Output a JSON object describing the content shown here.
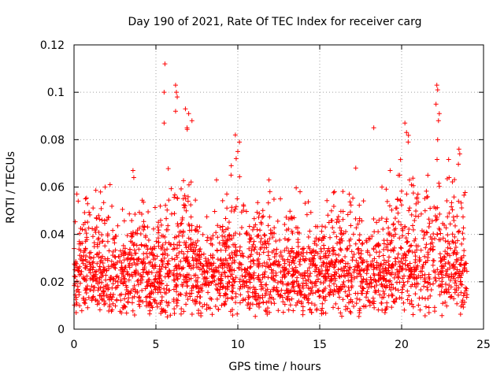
{
  "chart_data": {
    "type": "scatter",
    "title": "Day 190 of 2021, Rate Of TEC Index for receiver carg",
    "xlabel": "GPS time / hours",
    "ylabel": "ROTI / TECUs",
    "xlim": [
      0,
      25
    ],
    "ylim": [
      0,
      0.12
    ],
    "x_ticks": [
      0,
      5,
      10,
      15,
      20,
      25
    ],
    "x_tick_labels": [
      "0",
      "5",
      "10",
      "15",
      "20",
      "25"
    ],
    "y_ticks": [
      0,
      0.02,
      0.04,
      0.06,
      0.08,
      0.1,
      0.12
    ],
    "y_tick_labels": [
      "0",
      "0.02",
      "0.04",
      "0.06",
      "0.08",
      "0.1",
      "0.12"
    ],
    "grid": true,
    "marker": "plus",
    "color": "#ff0000",
    "x_data_range": [
      0,
      24
    ],
    "baseline_band": [
      0.005,
      0.03
    ],
    "series": [
      {
        "name": "ROTI",
        "points": [
          [
            5.55,
            0.112
          ],
          [
            5.5,
            0.1
          ],
          [
            6.2,
            0.103
          ],
          [
            6.25,
            0.1
          ],
          [
            6.3,
            0.098
          ],
          [
            5.5,
            0.087
          ],
          [
            6.2,
            0.092
          ],
          [
            6.8,
            0.093
          ],
          [
            7.0,
            0.091
          ],
          [
            7.2,
            0.088
          ],
          [
            6.9,
            0.085
          ],
          [
            9.85,
            0.082
          ],
          [
            10.1,
            0.079
          ],
          [
            10.0,
            0.075
          ],
          [
            9.9,
            0.072
          ],
          [
            18.3,
            0.085
          ],
          [
            20.2,
            0.087
          ],
          [
            20.3,
            0.083
          ],
          [
            20.4,
            0.079
          ],
          [
            22.15,
            0.103
          ],
          [
            22.2,
            0.101
          ],
          [
            22.1,
            0.095
          ],
          [
            22.3,
            0.091
          ],
          [
            22.25,
            0.088
          ],
          [
            22.2,
            0.08
          ],
          [
            23.5,
            0.076
          ],
          [
            23.55,
            0.074
          ],
          [
            3.6,
            0.067
          ],
          [
            3.65,
            0.064
          ],
          [
            11.9,
            0.063
          ],
          [
            13.8,
            0.058
          ],
          [
            15.9,
            0.058
          ],
          [
            17.2,
            0.068
          ],
          [
            19.3,
            0.067
          ],
          [
            19.8,
            0.065
          ],
          [
            21.6,
            0.065
          ],
          [
            22.9,
            0.064
          ],
          [
            1.9,
            0.06
          ],
          [
            2.2,
            0.061
          ],
          [
            0.7,
            0.055
          ],
          [
            8.7,
            0.063
          ],
          [
            9.6,
            0.069
          ],
          [
            12.6,
            0.055
          ],
          [
            16.8,
            0.057
          ],
          [
            18.8,
            0.06
          ],
          [
            21.0,
            0.057
          ]
        ]
      }
    ]
  }
}
